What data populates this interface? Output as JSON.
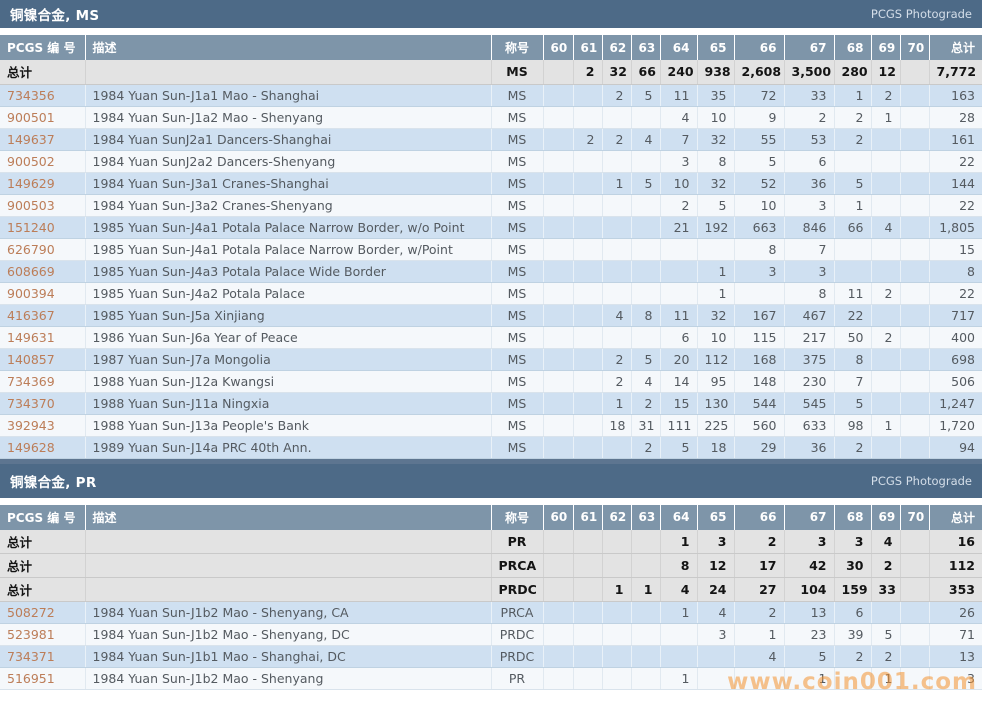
{
  "photograde_label": "PCGS Photograde",
  "watermark": "www.coin001.com",
  "columns": {
    "pcgs": "PCGS 编 号",
    "desc": "描述",
    "grade": "称号",
    "grades": [
      "60",
      "61",
      "62",
      "63",
      "64",
      "65",
      "66",
      "67",
      "68",
      "69",
      "70"
    ],
    "total": "总计"
  },
  "sections": [
    {
      "title": "铜镍合金, MS",
      "totals": [
        {
          "label": "总计",
          "desc": "",
          "grade": "MS",
          "g": [
            "",
            "2",
            "32",
            "66",
            "240",
            "938",
            "2,608",
            "3,500",
            "280",
            "12",
            ""
          ],
          "total": "7,772"
        }
      ],
      "rows": [
        {
          "no": "734356",
          "desc": "1984 Yuan Sun-J1a1 Mao - Shanghai",
          "grade": "MS",
          "g": [
            "",
            "",
            "2",
            "5",
            "11",
            "35",
            "72",
            "33",
            "1",
            "2",
            ""
          ],
          "total": "163"
        },
        {
          "no": "900501",
          "desc": "1984 Yuan Sun-J1a2 Mao - Shenyang",
          "grade": "MS",
          "g": [
            "",
            "",
            "",
            "",
            "4",
            "10",
            "9",
            "2",
            "2",
            "1",
            ""
          ],
          "total": "28"
        },
        {
          "no": "149637",
          "desc": "1984 Yuan SunJ2a1 Dancers-Shanghai",
          "grade": "MS",
          "g": [
            "",
            "2",
            "2",
            "4",
            "7",
            "32",
            "55",
            "53",
            "2",
            "",
            ""
          ],
          "total": "161"
        },
        {
          "no": "900502",
          "desc": "1984 Yuan SunJ2a2 Dancers-Shenyang",
          "grade": "MS",
          "g": [
            "",
            "",
            "",
            "",
            "3",
            "8",
            "5",
            "6",
            "",
            "",
            ""
          ],
          "total": "22"
        },
        {
          "no": "149629",
          "desc": "1984 Yuan Sun-J3a1 Cranes-Shanghai",
          "grade": "MS",
          "g": [
            "",
            "",
            "1",
            "5",
            "10",
            "32",
            "52",
            "36",
            "5",
            "",
            ""
          ],
          "total": "144"
        },
        {
          "no": "900503",
          "desc": "1984 Yuan Sun-J3a2 Cranes-Shenyang",
          "grade": "MS",
          "g": [
            "",
            "",
            "",
            "",
            "2",
            "5",
            "10",
            "3",
            "1",
            "",
            ""
          ],
          "total": "22"
        },
        {
          "no": "151240",
          "desc": "1985 Yuan Sun-J4a1 Potala Palace Narrow Border, w/o Point",
          "grade": "MS",
          "g": [
            "",
            "",
            "",
            "",
            "21",
            "192",
            "663",
            "846",
            "66",
            "4",
            ""
          ],
          "total": "1,805"
        },
        {
          "no": "626790",
          "desc": "1985 Yuan Sun-J4a1 Potala Palace Narrow Border, w/Point",
          "grade": "MS",
          "g": [
            "",
            "",
            "",
            "",
            "",
            "",
            "8",
            "7",
            "",
            "",
            ""
          ],
          "total": "15"
        },
        {
          "no": "608669",
          "desc": "1985 Yuan Sun-J4a3 Potala Palace Wide Border",
          "grade": "MS",
          "g": [
            "",
            "",
            "",
            "",
            "",
            "1",
            "3",
            "3",
            "",
            "",
            ""
          ],
          "total": "8"
        },
        {
          "no": "900394",
          "desc": "1985 Yuan Sun-J4a2 Potala Palace",
          "grade": "MS",
          "g": [
            "",
            "",
            "",
            "",
            "",
            "1",
            "",
            "8",
            "11",
            "2",
            ""
          ],
          "total": "22"
        },
        {
          "no": "416367",
          "desc": "1985 Yuan Sun-J5a Xinjiang",
          "grade": "MS",
          "g": [
            "",
            "",
            "4",
            "8",
            "11",
            "32",
            "167",
            "467",
            "22",
            "",
            ""
          ],
          "total": "717"
        },
        {
          "no": "149631",
          "desc": "1986 Yuan Sun-J6a Year of Peace",
          "grade": "MS",
          "g": [
            "",
            "",
            "",
            "",
            "6",
            "10",
            "115",
            "217",
            "50",
            "2",
            ""
          ],
          "total": "400"
        },
        {
          "no": "140857",
          "desc": "1987 Yuan Sun-J7a Mongolia",
          "grade": "MS",
          "g": [
            "",
            "",
            "2",
            "5",
            "20",
            "112",
            "168",
            "375",
            "8",
            "",
            ""
          ],
          "total": "698"
        },
        {
          "no": "734369",
          "desc": "1988 Yuan Sun-J12a Kwangsi",
          "grade": "MS",
          "g": [
            "",
            "",
            "2",
            "4",
            "14",
            "95",
            "148",
            "230",
            "7",
            "",
            ""
          ],
          "total": "506"
        },
        {
          "no": "734370",
          "desc": "1988 Yuan Sun-J11a Ningxia",
          "grade": "MS",
          "g": [
            "",
            "",
            "1",
            "2",
            "15",
            "130",
            "544",
            "545",
            "5",
            "",
            ""
          ],
          "total": "1,247"
        },
        {
          "no": "392943",
          "desc": "1988 Yuan Sun-J13a People's Bank",
          "grade": "MS",
          "g": [
            "",
            "",
            "18",
            "31",
            "111",
            "225",
            "560",
            "633",
            "98",
            "1",
            ""
          ],
          "total": "1,720"
        },
        {
          "no": "149628",
          "desc": "1989 Yuan Sun-J14a PRC 40th Ann.",
          "grade": "MS",
          "g": [
            "",
            "",
            "",
            "2",
            "5",
            "18",
            "29",
            "36",
            "2",
            "",
            ""
          ],
          "total": "94"
        }
      ]
    },
    {
      "title": "铜镍合金, PR",
      "totals": [
        {
          "label": "总计",
          "desc": "",
          "grade": "PR",
          "g": [
            "",
            "",
            "",
            "",
            "1",
            "3",
            "2",
            "3",
            "3",
            "4",
            ""
          ],
          "total": "16"
        },
        {
          "label": "总计",
          "desc": "",
          "grade": "PRCA",
          "g": [
            "",
            "",
            "",
            "",
            "8",
            "12",
            "17",
            "42",
            "30",
            "2",
            ""
          ],
          "total": "112"
        },
        {
          "label": "总计",
          "desc": "",
          "grade": "PRDC",
          "g": [
            "",
            "",
            "1",
            "1",
            "4",
            "24",
            "27",
            "104",
            "159",
            "33",
            ""
          ],
          "total": "353"
        }
      ],
      "rows": [
        {
          "no": "508272",
          "desc": "1984 Yuan Sun-J1b2 Mao - Shenyang, CA",
          "grade": "PRCA",
          "g": [
            "",
            "",
            "",
            "",
            "1",
            "4",
            "2",
            "13",
            "6",
            "",
            ""
          ],
          "total": "26"
        },
        {
          "no": "523981",
          "desc": "1984 Yuan Sun-J1b2 Mao - Shenyang, DC",
          "grade": "PRDC",
          "g": [
            "",
            "",
            "",
            "",
            "",
            "3",
            "1",
            "23",
            "39",
            "5",
            ""
          ],
          "total": "71"
        },
        {
          "no": "734371",
          "desc": "1984 Yuan Sun-J1b1 Mao - Shanghai, DC",
          "grade": "PRDC",
          "g": [
            "",
            "",
            "",
            "",
            "",
            "",
            "4",
            "5",
            "2",
            "2",
            ""
          ],
          "total": "13"
        },
        {
          "no": "516951",
          "desc": "1984 Yuan Sun-J1b2 Mao - Shenyang",
          "grade": "PR",
          "g": [
            "",
            "",
            "",
            "",
            "1",
            "",
            "",
            "1",
            "",
            "1",
            ""
          ],
          "total": "3"
        }
      ]
    }
  ]
}
